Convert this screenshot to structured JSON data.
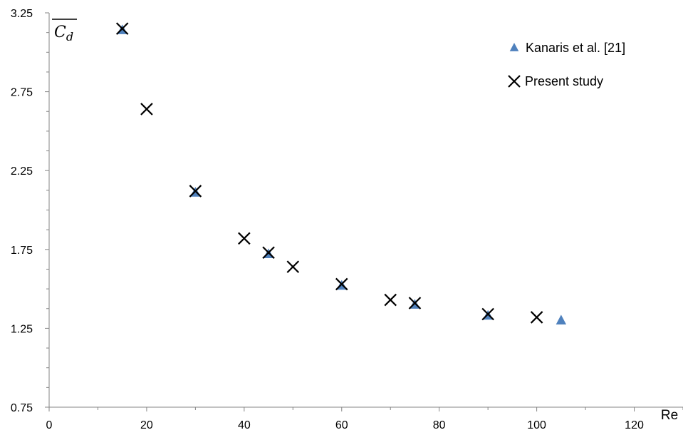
{
  "chart_data": {
    "type": "scatter",
    "xlabel": "Re",
    "ylabel": {
      "main": "C",
      "sub": "d"
    },
    "xlim": [
      0,
      130
    ],
    "ylim": [
      0.75,
      3.25
    ],
    "x_ticks": [
      0,
      20,
      40,
      60,
      80,
      100,
      120
    ],
    "y_ticks": [
      0.75,
      1.25,
      1.75,
      2.25,
      2.75,
      3.25
    ],
    "x_tick_labels": [
      "0",
      "20",
      "40",
      "60",
      "80",
      "100",
      "120"
    ],
    "y_tick_labels": [
      "0.75",
      "1.25",
      "1.75",
      "2.25",
      "2.75",
      "3.25"
    ],
    "grid": false,
    "legend_position": "top-right",
    "series": [
      {
        "name": "Kanaris et al. [21]",
        "marker": "triangle",
        "color": "#4f81bd",
        "points": [
          {
            "x": 15,
            "y": 3.14
          },
          {
            "x": 30,
            "y": 2.11
          },
          {
            "x": 45,
            "y": 1.72
          },
          {
            "x": 60,
            "y": 1.52
          },
          {
            "x": 75,
            "y": 1.4
          },
          {
            "x": 90,
            "y": 1.33
          },
          {
            "x": 105,
            "y": 1.3
          }
        ]
      },
      {
        "name": "Present study",
        "marker": "x",
        "color": "#000000",
        "points": [
          {
            "x": 15,
            "y": 3.15
          },
          {
            "x": 20,
            "y": 2.64
          },
          {
            "x": 30,
            "y": 2.12
          },
          {
            "x": 40,
            "y": 1.82
          },
          {
            "x": 45,
            "y": 1.73
          },
          {
            "x": 50,
            "y": 1.64
          },
          {
            "x": 60,
            "y": 1.53
          },
          {
            "x": 70,
            "y": 1.43
          },
          {
            "x": 75,
            "y": 1.41
          },
          {
            "x": 90,
            "y": 1.34
          },
          {
            "x": 100,
            "y": 1.32
          }
        ]
      }
    ]
  }
}
